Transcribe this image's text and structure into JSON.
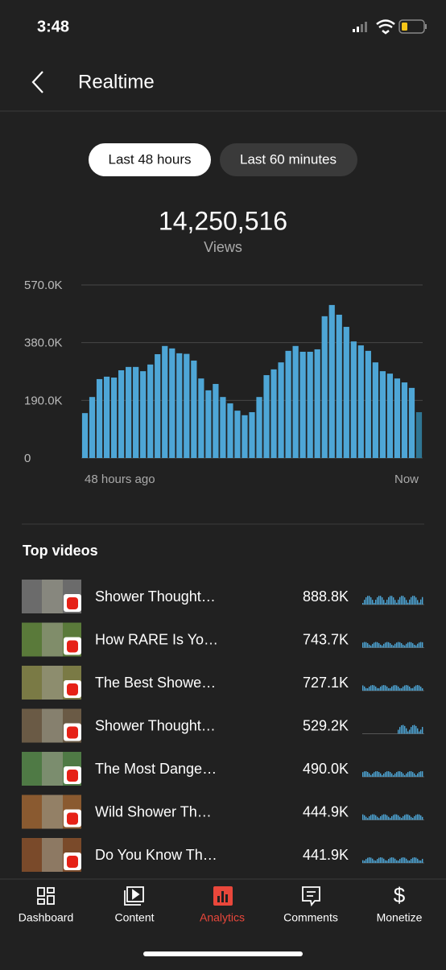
{
  "status_bar": {
    "time": "3:48"
  },
  "header": {
    "title": "Realtime"
  },
  "tabs": [
    "Last 48 hours",
    "Last 60 minutes"
  ],
  "summary": {
    "value": "14,250,516",
    "label": "Views"
  },
  "chart_data": {
    "type": "bar",
    "categories": [
      "48 hours ago",
      null,
      null,
      null,
      null,
      null,
      null,
      null,
      null,
      null,
      null,
      null,
      null,
      null,
      null,
      null,
      null,
      null,
      null,
      null,
      null,
      null,
      null,
      null,
      null,
      null,
      null,
      null,
      null,
      null,
      null,
      null,
      null,
      null,
      null,
      null,
      null,
      null,
      null,
      null,
      null,
      null,
      null,
      null,
      null,
      null,
      "Now"
    ],
    "values": [
      148000,
      201000,
      260000,
      268000,
      265000,
      289000,
      300000,
      300000,
      286000,
      308000,
      342000,
      369000,
      361000,
      345000,
      343000,
      321000,
      262000,
      223000,
      244000,
      201000,
      180000,
      156000,
      141000,
      151000,
      201000,
      273000,
      292000,
      315000,
      353000,
      369000,
      350000,
      350000,
      358000,
      467000,
      504000,
      472000,
      432000,
      384000,
      371000,
      353000,
      315000,
      286000,
      278000,
      262000,
      249000,
      231000,
      151000
    ],
    "color": "#4ea6d6",
    "last_color": "#2f7694",
    "ylim": [
      0,
      570000
    ],
    "yticks": [
      0,
      {
        "value": 190000,
        "label": "190.0K"
      },
      {
        "value": 380000,
        "label": "380.0K"
      },
      {
        "value": 570000,
        "label": "570.0K"
      }
    ],
    "grid": true
  },
  "top_videos": {
    "title": "Top videos",
    "rows": [
      {
        "title": "Shower Thought…",
        "views": "888.8K"
      },
      {
        "title": "How RARE Is Yo…",
        "views": "743.7K"
      },
      {
        "title": "The Best Showe…",
        "views": "727.1K"
      },
      {
        "title": "Shower Thought…",
        "views": "529.2K"
      },
      {
        "title": "The Most Dange…",
        "views": "490.0K"
      },
      {
        "title": "Wild Shower Th…",
        "views": "444.9K"
      },
      {
        "title": "Do You Know Th…",
        "views": "441.9K"
      }
    ]
  },
  "nav": [
    "Dashboard",
    "Content",
    "Analytics",
    "Comments",
    "Monetize"
  ]
}
